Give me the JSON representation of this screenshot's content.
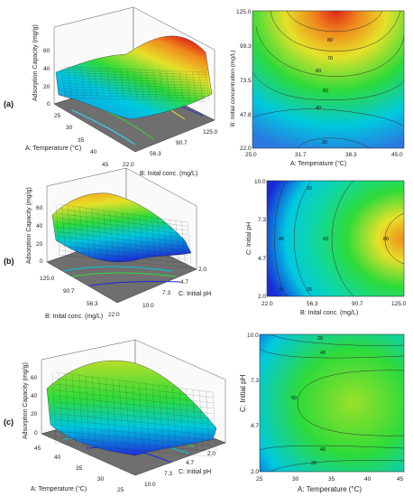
{
  "panels": [
    {
      "label": "(a)"
    },
    {
      "label": "(b)"
    },
    {
      "label": "(c)"
    }
  ],
  "chart_data": [
    {
      "type": "surface3d",
      "panel": "(a)",
      "zlabel": "Adsorption Capacity (mg/g)",
      "xlabel": "A: Temperature (°C)",
      "ylabel": "B: Inital conc. (mg/L)",
      "x_ticks": [
        "25",
        "30",
        "35",
        "40",
        "45"
      ],
      "y_ticks": [
        "22.0",
        "56.3",
        "90.7",
        "125.0"
      ],
      "z_ticks": [
        "0",
        "20",
        "40",
        "60",
        "80",
        "100"
      ],
      "xlim": [
        25,
        45
      ],
      "ylim": [
        22,
        125
      ],
      "zlim": [
        0,
        100
      ],
      "colors": [
        "#1a2bd6",
        "#00c8e0",
        "#2edb3a",
        "#e6e12a",
        "#f08a1c",
        "#e0261a"
      ]
    },
    {
      "type": "contour",
      "panel": "(a)",
      "xlabel": "A: Temperature (°C)",
      "ylabel": "B: Initial concentration (mg/L)",
      "x_ticks": [
        "25.0",
        "31.7",
        "38.3",
        "45.0"
      ],
      "y_ticks": [
        "22.0",
        "47.8",
        "73.5",
        "99.3",
        "125.0"
      ],
      "xlim": [
        25,
        45
      ],
      "ylim": [
        22,
        125
      ],
      "contour_labels": [
        "20",
        "40",
        "50",
        "60",
        "70",
        "80"
      ]
    },
    {
      "type": "surface3d",
      "panel": "(b)",
      "zlabel": "Adsorption Capacity (mg/g)",
      "xlabel": "B: Inital conc. (mg/L)",
      "ylabel": "C: Initial pH",
      "x_ticks": [
        "125.0",
        "90.7",
        "56.3",
        "22.0"
      ],
      "y_ticks": [
        "2.0",
        "4.7",
        "7.3",
        "10.0"
      ],
      "z_ticks": [
        "0",
        "20",
        "40",
        "60",
        "80",
        "100"
      ],
      "xlim": [
        22,
        125
      ],
      "ylim": [
        2,
        10
      ],
      "zlim": [
        0,
        100
      ]
    },
    {
      "type": "contour",
      "panel": "(b)",
      "xlabel": "B: Inital conc. (mg/L)",
      "ylabel": "C: Initial pH",
      "x_ticks": [
        "22.0",
        "56.3",
        "90.7",
        "125.0"
      ],
      "y_ticks": [
        "2.0",
        "4.7",
        "7.3",
        "10.0"
      ],
      "xlim": [
        22,
        125
      ],
      "ylim": [
        2,
        10
      ],
      "contour_labels": [
        "0",
        "20",
        "40",
        "60",
        "80"
      ]
    },
    {
      "type": "surface3d",
      "panel": "(c)",
      "zlabel": "Adsorption Capacity (mg/g)",
      "xlabel": "A: Temperature (°C)",
      "ylabel": "C: Initial pH",
      "x_ticks": [
        "45",
        "40",
        "35",
        "30",
        "25"
      ],
      "y_ticks": [
        "2.0",
        "4.7",
        "7.3",
        "10.0"
      ],
      "z_ticks": [
        "0",
        "20",
        "40",
        "60",
        "80"
      ],
      "xlim": [
        25,
        45
      ],
      "ylim": [
        2,
        10
      ],
      "zlim": [
        0,
        80
      ]
    },
    {
      "type": "contour",
      "panel": "(c)",
      "xlabel": "A: Temperature (°C)",
      "ylabel": "C: Initial pH",
      "x_ticks": [
        "25",
        "30",
        "35",
        "40",
        "45"
      ],
      "y_ticks": [
        "2.0",
        "4.7",
        "7.3",
        "10.0"
      ],
      "xlim": [
        25,
        45
      ],
      "ylim": [
        2,
        10
      ],
      "contour_labels": [
        "20",
        "40",
        "60",
        "40",
        "20"
      ]
    }
  ]
}
